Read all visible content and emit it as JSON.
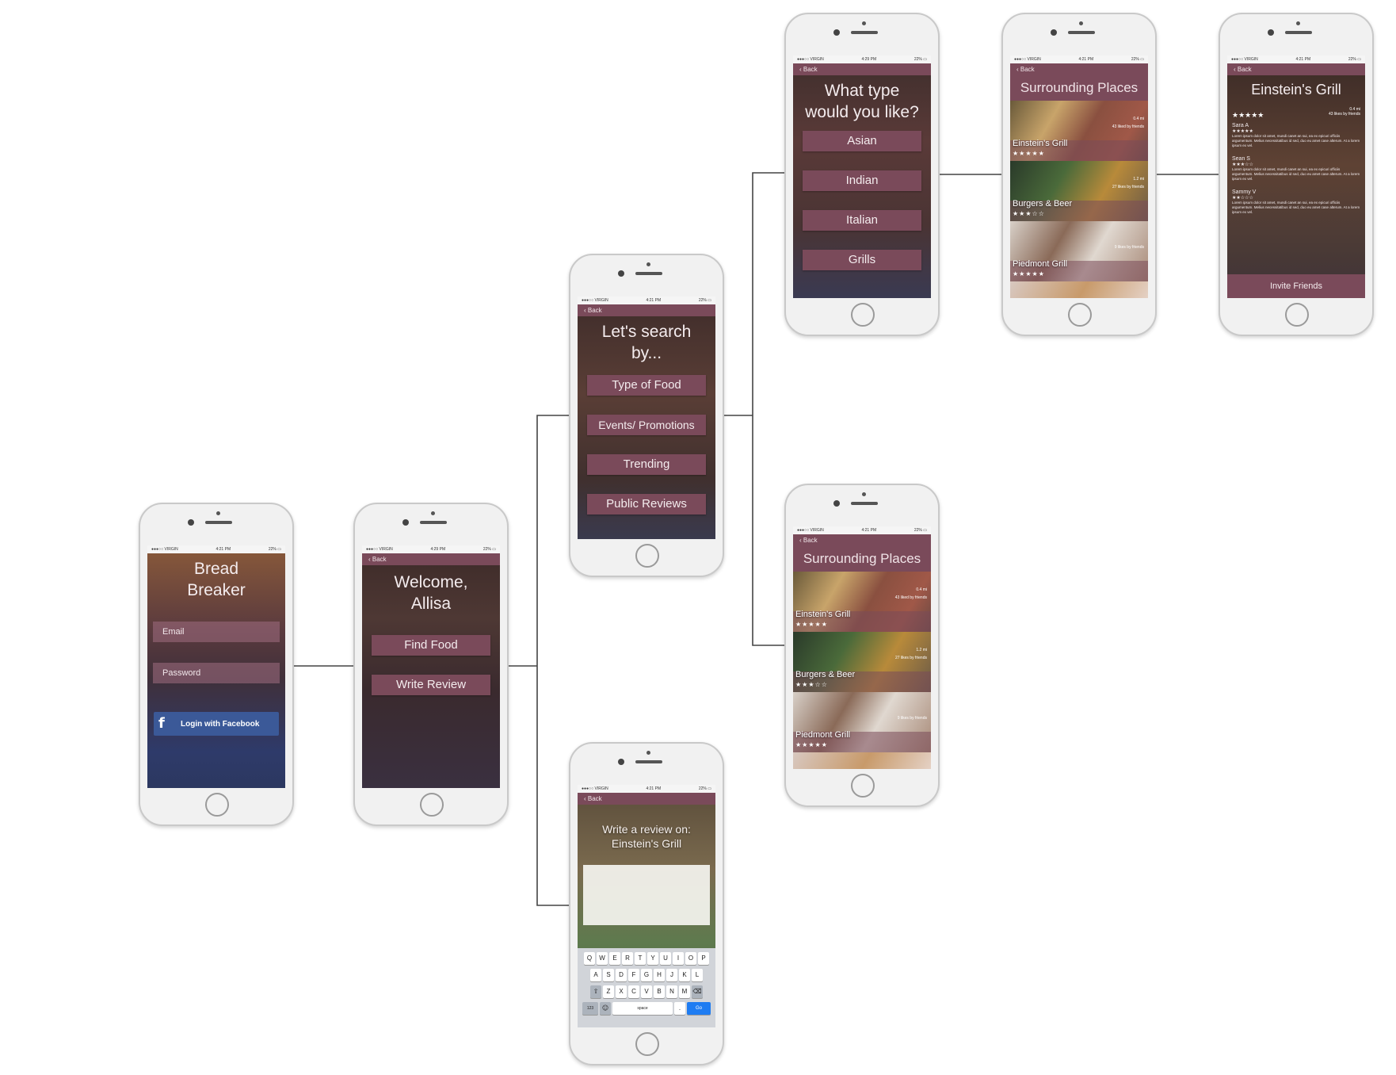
{
  "status": {
    "carrier": "●●●○○ VIRGIN",
    "battery": "22% ▭"
  },
  "times": [
    "4:21 PM",
    "4:29 PM",
    "4:21 PM",
    "4:21 PM",
    "4:29 PM",
    "4:21 PM",
    "4:21 PM",
    "4:21 PM"
  ],
  "back_label": "Back",
  "login": {
    "title_line1": "Bread",
    "title_line2": "Breaker",
    "email_placeholder": "Email",
    "password_placeholder": "Password",
    "facebook_icon": "f",
    "facebook_label": "Login with Facebook"
  },
  "welcome": {
    "title_line1": "Welcome,",
    "title_line2": "Allisa",
    "buttons": [
      "Find Food",
      "Write Review"
    ]
  },
  "search": {
    "title_line1": "Let's search",
    "title_line2": "by...",
    "buttons": [
      "Type of Food",
      "Events/ Promotions",
      "Trending",
      "Public Reviews"
    ]
  },
  "food_type": {
    "title_line1": "What type",
    "title_line2": "would you like?",
    "buttons": [
      "Asian",
      "Indian",
      "Italian",
      "Grills"
    ]
  },
  "places": {
    "header": "Surrounding Places",
    "items": [
      {
        "name": "Einstein's Grill",
        "stars": "★★★★★",
        "distance": "0.4 mi",
        "friends": "43 liked by friends"
      },
      {
        "name": "Burgers & Beer",
        "stars": "★★★☆☆",
        "distance": "1.2 mi",
        "friends": "27 likes by friends"
      },
      {
        "name": "Piedmont Grill",
        "stars": "★★★★★",
        "distance": "",
        "friends": "9 likes by friends"
      }
    ]
  },
  "detail": {
    "name": "Einstein's Grill",
    "stars": "★★★★★",
    "distance": "0.4 mi",
    "friends": "43 likes by friends",
    "reviews": [
      {
        "author": "Sara A",
        "stars": "★★★★★",
        "text": "Lorem ipsum dolor sit amet, mundi canet an sui, ea ex epicuri officiis argumentum. Melius necessitatibus id sed, duo eu amet case alterum. At a lorem ipsum ex vel."
      },
      {
        "author": "Sean S",
        "stars": "★★★☆☆",
        "text": "Lorem ipsum dolor sit amet, mundi canet an sui, ea ex epicuri officiis argumentum. Melius necessitatibus id sed, duo eu amet case alterum. At a lorem ipsum ex vel."
      },
      {
        "author": "Sammy V",
        "stars": "★★☆☆☆",
        "text": "Lorem ipsum dolor sit amet, mundi canet an sui, ea ex epicuri officiis argumentum. Melius necessitatibus id sed, duo eu amet case alterum. At a lorem ipsum ex vel."
      }
    ],
    "invite_label": "Invite Friends"
  },
  "review": {
    "title_line1": "Write a review on:",
    "title_line2": "Einstein's Grill",
    "keyboard_rows": [
      [
        "Q",
        "W",
        "E",
        "R",
        "T",
        "Y",
        "U",
        "I",
        "O",
        "P"
      ],
      [
        "A",
        "S",
        "D",
        "F",
        "G",
        "H",
        "J",
        "K",
        "L"
      ],
      [
        "Z",
        "X",
        "C",
        "V",
        "B",
        "N",
        "M"
      ]
    ],
    "shift_key": "⇧",
    "delete_key": "⌫",
    "numbers_key": "123",
    "emoji_key": "☺",
    "space_key": "space",
    "period_key": ".",
    "go_key": "Go"
  },
  "colors": {
    "accent": "#7a4a5a",
    "facebook": "#3b5998",
    "connector": "#444444"
  }
}
